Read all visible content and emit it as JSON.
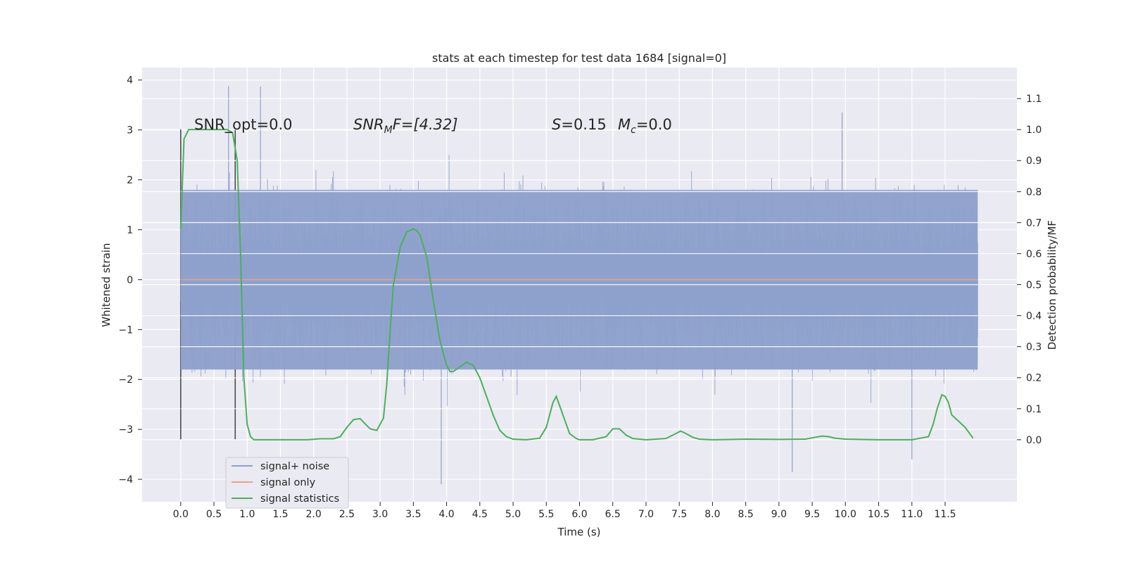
{
  "chart_data": {
    "type": "line",
    "title": "stats at each timestep for test data 1684 [signal=0]",
    "xlabel": "Time (s)",
    "ylabel_left": "Whitened strain",
    "ylabel_right": "Detection probability/MF",
    "xlim": [
      -0.58,
      12.58
    ],
    "ylim_left": [
      -4.45,
      4.25
    ],
    "ylim_right": [
      -0.2,
      1.2
    ],
    "x_ticks": [
      "0.0",
      "0.5",
      "1.0",
      "1.5",
      "2.0",
      "2.5",
      "3.0",
      "3.5",
      "4.0",
      "4.5",
      "5.0",
      "5.5",
      "6.0",
      "6.5",
      "7.0",
      "7.5",
      "8.0",
      "8.5",
      "9.0",
      "9.5",
      "10.0",
      "10.5",
      "11.0",
      "11.5"
    ],
    "y_ticks_left": [
      "4",
      "3",
      "2",
      "1",
      "0",
      "−1",
      "−2",
      "−3",
      "−4"
    ],
    "y_ticks_right": [
      "1.1",
      "1.0",
      "0.9",
      "0.8",
      "0.7",
      "0.6",
      "0.5",
      "0.4",
      "0.3",
      "0.2",
      "0.1",
      "0.0"
    ],
    "grid": true,
    "legend_position": "bottom-left",
    "annotations": {
      "snr_opt": "SNR_opt=0.0",
      "snr_mf_base": "SNR",
      "snr_mf_sub": "M",
      "snr_mf_rest": "F=[4.32]",
      "s_label": "S",
      "s_value": "=0.15",
      "mc_label": "M",
      "mc_sub": "c",
      "mc_value": "=0.0"
    },
    "vlines": [
      0.0,
      0.82
    ],
    "vlines_range": [
      -3.2,
      3.02
    ],
    "series": [
      {
        "name": "signal+ noise",
        "color": "#8da0cb",
        "axis": "left",
        "x_range": [
          0.0,
          11.99
        ],
        "envelope_core": 1.8,
        "notable_peaks": [
          [
            0.72,
            3.88
          ],
          [
            1.2,
            3.87
          ],
          [
            3.92,
            -4.1
          ],
          [
            9.2,
            -3.85
          ],
          [
            11.0,
            -3.6
          ],
          [
            9.95,
            3.35
          ]
        ]
      },
      {
        "name": "signal only",
        "color": "#e8a28a",
        "axis": "left",
        "x": [
          0.0,
          11.99
        ],
        "y": [
          0.0,
          0.0
        ]
      },
      {
        "name": "signal statistics",
        "color": "#4caf5c",
        "axis": "right",
        "x": [
          0.0,
          0.05,
          0.12,
          0.2,
          0.3,
          0.5,
          0.7,
          0.78,
          0.85,
          0.9,
          0.95,
          1.0,
          1.05,
          1.1,
          1.3,
          1.6,
          1.9,
          2.1,
          2.3,
          2.4,
          2.5,
          2.6,
          2.7,
          2.78,
          2.85,
          2.95,
          3.05,
          3.1,
          3.15,
          3.2,
          3.3,
          3.4,
          3.5,
          3.55,
          3.6,
          3.7,
          3.8,
          3.9,
          4.0,
          4.05,
          4.1,
          4.2,
          4.3,
          4.4,
          4.5,
          4.6,
          4.7,
          4.8,
          4.9,
          5.0,
          5.2,
          5.4,
          5.5,
          5.6,
          5.65,
          5.7,
          5.75,
          5.85,
          5.95,
          6.0,
          6.2,
          6.4,
          6.5,
          6.55,
          6.6,
          6.7,
          6.8,
          7.0,
          7.3,
          7.45,
          7.52,
          7.6,
          7.7,
          7.8,
          8.0,
          8.5,
          9.0,
          9.4,
          9.55,
          9.65,
          9.75,
          9.85,
          10.0,
          10.5,
          11.0,
          11.25,
          11.32,
          11.38,
          11.45,
          11.5,
          11.55,
          11.6,
          11.7,
          11.8,
          11.92
        ],
        "y": [
          0.68,
          0.97,
          1.0,
          1.0,
          1.0,
          1.0,
          1.0,
          0.99,
          0.9,
          0.6,
          0.2,
          0.05,
          0.01,
          0.0,
          0.0,
          0.0,
          0.0,
          0.003,
          0.003,
          0.01,
          0.04,
          0.065,
          0.068,
          0.05,
          0.035,
          0.03,
          0.07,
          0.18,
          0.35,
          0.5,
          0.62,
          0.67,
          0.68,
          0.675,
          0.66,
          0.59,
          0.45,
          0.32,
          0.24,
          0.22,
          0.22,
          0.235,
          0.25,
          0.24,
          0.2,
          0.14,
          0.08,
          0.03,
          0.01,
          0.002,
          0.0,
          0.005,
          0.04,
          0.12,
          0.14,
          0.11,
          0.08,
          0.02,
          0.004,
          0.0,
          0.0,
          0.01,
          0.035,
          0.035,
          0.035,
          0.015,
          0.004,
          0.0,
          0.004,
          0.02,
          0.028,
          0.02,
          0.008,
          0.002,
          0.0,
          0.002,
          0.001,
          0.002,
          0.008,
          0.012,
          0.01,
          0.005,
          0.002,
          0.0,
          0.0,
          0.01,
          0.05,
          0.1,
          0.145,
          0.14,
          0.12,
          0.08,
          0.06,
          0.04,
          0.005
        ]
      }
    ]
  }
}
